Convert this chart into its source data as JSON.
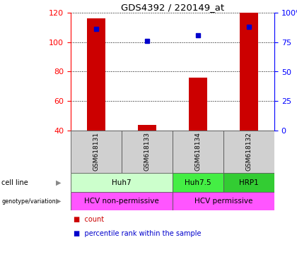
{
  "title": "GDS4392 / 220149_at",
  "samples": [
    "GSM618131",
    "GSM618133",
    "GSM618134",
    "GSM618132"
  ],
  "bar_values": [
    116,
    44,
    76,
    120
  ],
  "bar_bottom": 40,
  "percentile_values": [
    86,
    76,
    81,
    88
  ],
  "ylim_left": [
    40,
    120
  ],
  "ylim_right": [
    0,
    100
  ],
  "yticks_left": [
    40,
    60,
    80,
    100,
    120
  ],
  "yticks_right": [
    0,
    25,
    50,
    75,
    100
  ],
  "bar_color": "#cc0000",
  "marker_color": "#0000cc",
  "cell_line_groups": [
    {
      "label": "Huh7",
      "start": 0,
      "end": 2,
      "color": "#ccffcc"
    },
    {
      "label": "Huh7.5",
      "start": 2,
      "end": 3,
      "color": "#44ee44"
    },
    {
      "label": "HRP1",
      "start": 3,
      "end": 4,
      "color": "#33cc33"
    }
  ],
  "geno_groups": [
    {
      "label": "HCV non-permissive",
      "start": 0,
      "end": 2,
      "color": "#ff55ff"
    },
    {
      "label": "HCV permissive",
      "start": 2,
      "end": 4,
      "color": "#ff55ff"
    }
  ],
  "legend_count_color": "#cc0000",
  "legend_pct_color": "#0000cc",
  "sample_bg_color": "#d0d0d0"
}
